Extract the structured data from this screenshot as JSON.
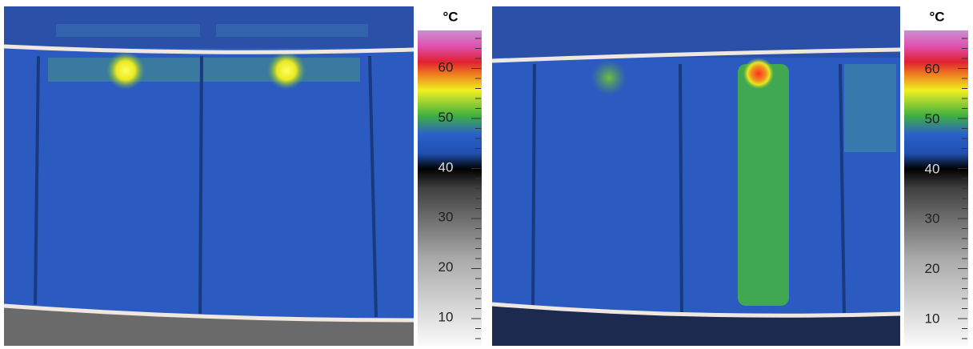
{
  "panels": [
    {
      "unit": "°C",
      "scale_labels": [
        "60",
        "50",
        "40",
        "30",
        "20",
        "10"
      ]
    },
    {
      "unit": "°C",
      "scale_labels": [
        "60",
        "50",
        "40",
        "30",
        "20",
        "10"
      ]
    }
  ]
}
